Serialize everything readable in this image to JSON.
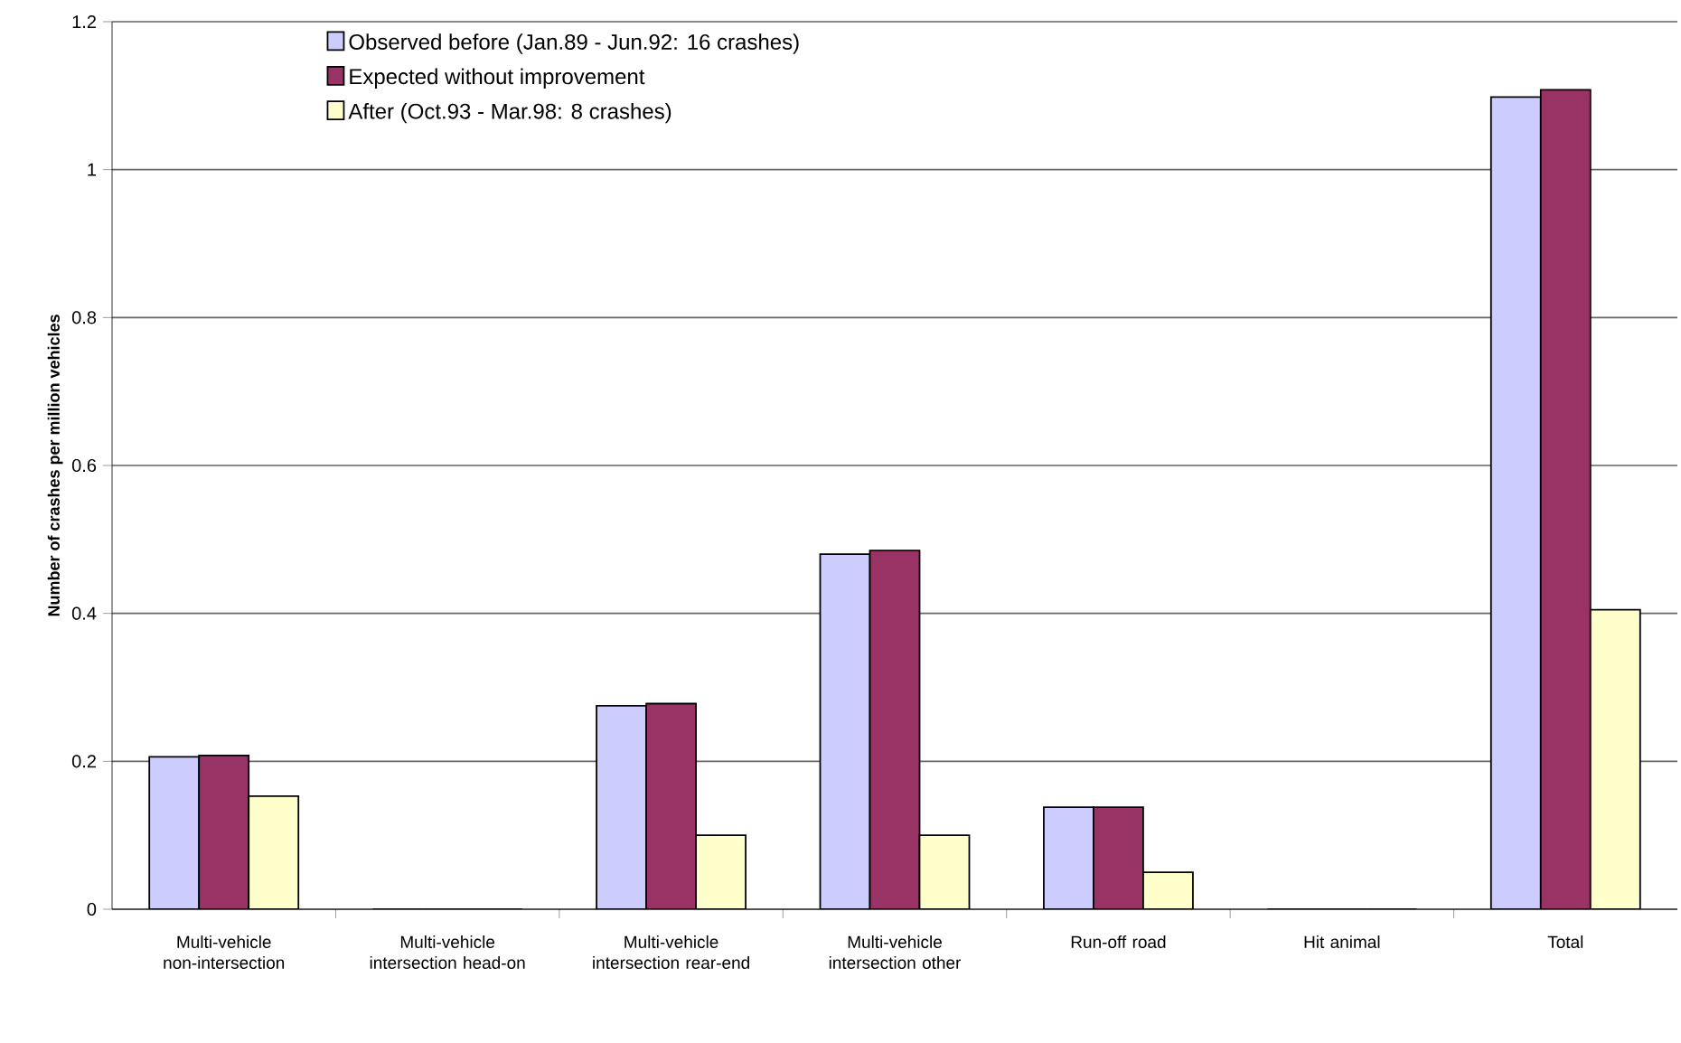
{
  "chart_data": {
    "type": "bar",
    "ylabel": "Number of crashes per million vehicles",
    "categories": [
      "Multi-vehicle non-intersection",
      "Multi-vehicle intersection head-on",
      "Multi-vehicle intersection rear-end",
      "Multi-vehicle intersection other",
      "Run-off road",
      "Hit animal",
      "Total"
    ],
    "series": [
      {
        "name": "Observed before (Jan.89 - Jun.92: 16 crashes)",
        "color": "#ccccff",
        "values": [
          0.206,
          0,
          0.275,
          0.48,
          0.138,
          0,
          1.098
        ]
      },
      {
        "name": "Expected without improvement",
        "color": "#993366",
        "values": [
          0.208,
          0,
          0.278,
          0.485,
          0.138,
          0,
          1.108
        ]
      },
      {
        "name": "After (Oct.93 - Mar.98: 8 crashes)",
        "color": "#ffffcc",
        "values": [
          0.153,
          0,
          0.1,
          0.1,
          0.05,
          0,
          0.405
        ]
      }
    ],
    "ylim": [
      0,
      1.2
    ],
    "yticks": [
      0,
      0.2,
      0.4,
      0.6,
      0.8,
      1,
      1.2
    ],
    "grid": "y",
    "legend": "top left"
  }
}
